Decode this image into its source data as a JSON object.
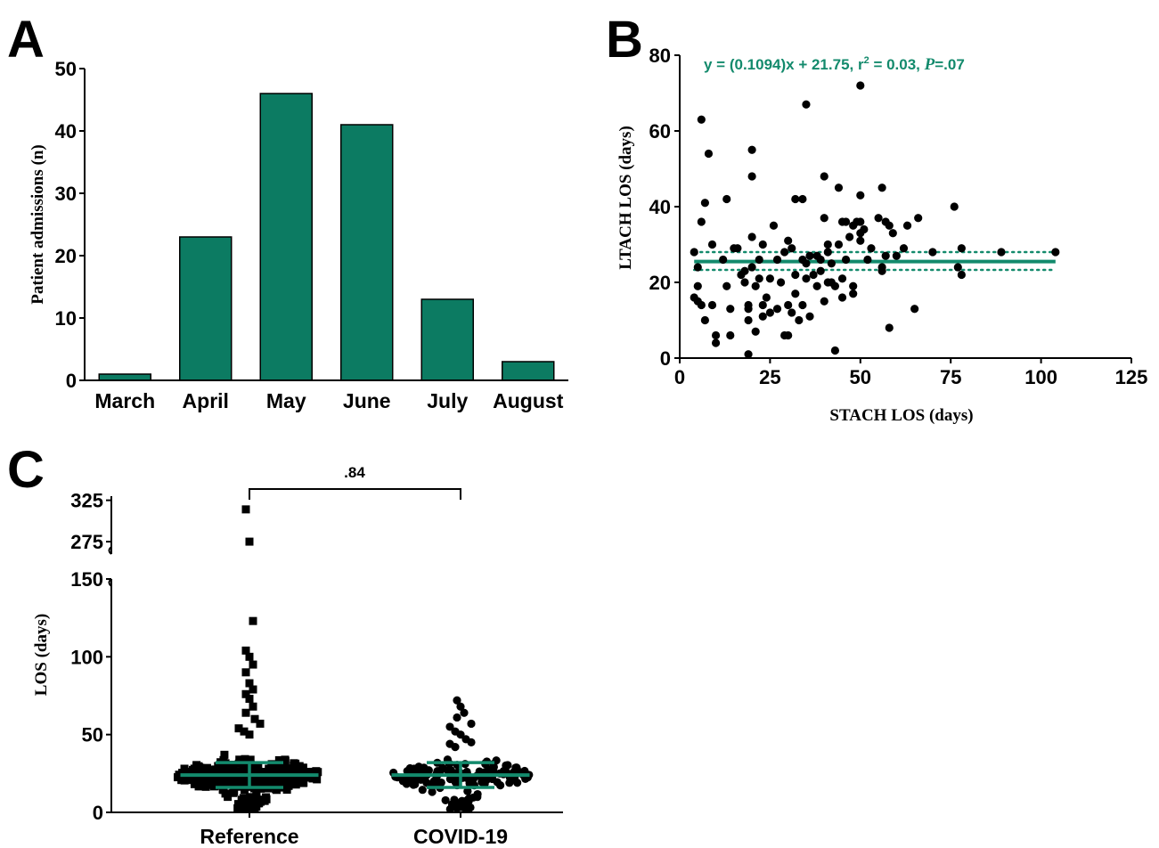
{
  "colors": {
    "bar": "#0c7b62",
    "accent": "#138a6c",
    "marker": "#000000"
  },
  "chart_data": [
    {
      "panel": "A",
      "type": "bar",
      "categories": [
        "March",
        "April",
        "May",
        "June",
        "July",
        "August"
      ],
      "values": [
        1,
        23,
        46,
        41,
        13,
        3
      ],
      "ylabel": "Patient admissions (n)",
      "xlabel": "",
      "ylim": [
        0,
        50
      ],
      "yticks": [
        0,
        10,
        20,
        30,
        40,
        50
      ],
      "grid": false
    },
    {
      "panel": "B",
      "type": "scatter",
      "xlabel": "STACH LOS (days)",
      "ylabel": "LTACH LOS (days)",
      "xlim": [
        0,
        125
      ],
      "ylim": [
        0,
        80
      ],
      "xticks": [
        0,
        25,
        50,
        75,
        100,
        125
      ],
      "yticks": [
        0,
        20,
        40,
        60,
        80
      ],
      "annotation": {
        "prefix": "y = (0.1094)x + 21.75, r",
        "sup": "2",
        "mid": " = 0.03, ",
        "p_letter": "P",
        "suffix": "=.07"
      },
      "fit_line": {
        "x": [
          4,
          104
        ],
        "y": [
          25.5,
          25.5
        ]
      },
      "ci_upper": {
        "x": [
          4,
          104
        ],
        "y": [
          28,
          28
        ]
      },
      "ci_lower": {
        "x": [
          4,
          104
        ],
        "y": [
          23.3,
          23.3
        ]
      },
      "points": [
        [
          6,
          63
        ],
        [
          8,
          54
        ],
        [
          20,
          55
        ],
        [
          35,
          67
        ],
        [
          50,
          72
        ],
        [
          7,
          41
        ],
        [
          6,
          36
        ],
        [
          13,
          42
        ],
        [
          20,
          48
        ],
        [
          4,
          28
        ],
        [
          5,
          24
        ],
        [
          5,
          19
        ],
        [
          4,
          16
        ],
        [
          5,
          15
        ],
        [
          6,
          14
        ],
        [
          7,
          10
        ],
        [
          9,
          14
        ],
        [
          9,
          30
        ],
        [
          10,
          6
        ],
        [
          10,
          4
        ],
        [
          12,
          26
        ],
        [
          13,
          19
        ],
        [
          14,
          13
        ],
        [
          14,
          6
        ],
        [
          15,
          29
        ],
        [
          16,
          29
        ],
        [
          17,
          22
        ],
        [
          18,
          20
        ],
        [
          18,
          23
        ],
        [
          19,
          10
        ],
        [
          19,
          1
        ],
        [
          19,
          14
        ],
        [
          19,
          13
        ],
        [
          20,
          32
        ],
        [
          20,
          24
        ],
        [
          21,
          7
        ],
        [
          21,
          19
        ],
        [
          22,
          21
        ],
        [
          22,
          26
        ],
        [
          23,
          11
        ],
        [
          23,
          14
        ],
        [
          23,
          30
        ],
        [
          24,
          16
        ],
        [
          25,
          12
        ],
        [
          25,
          21
        ],
        [
          26,
          35
        ],
        [
          27,
          26
        ],
        [
          27,
          13
        ],
        [
          28,
          20
        ],
        [
          29,
          28
        ],
        [
          29,
          6
        ],
        [
          30,
          6
        ],
        [
          30,
          14
        ],
        [
          30,
          31
        ],
        [
          31,
          12
        ],
        [
          31,
          29
        ],
        [
          32,
          42
        ],
        [
          32,
          22
        ],
        [
          32,
          17
        ],
        [
          33,
          10
        ],
        [
          34,
          42
        ],
        [
          34,
          14
        ],
        [
          34,
          26
        ],
        [
          35,
          21
        ],
        [
          35,
          25
        ],
        [
          36,
          27
        ],
        [
          36,
          11
        ],
        [
          37,
          22
        ],
        [
          38,
          19
        ],
        [
          38,
          27
        ],
        [
          39,
          23
        ],
        [
          39,
          26
        ],
        [
          40,
          48
        ],
        [
          40,
          37
        ],
        [
          40,
          15
        ],
        [
          41,
          28
        ],
        [
          41,
          30
        ],
        [
          41,
          20
        ],
        [
          42,
          25
        ],
        [
          42,
          20
        ],
        [
          43,
          19
        ],
        [
          43,
          2
        ],
        [
          44,
          45
        ],
        [
          44,
          30
        ],
        [
          45,
          21
        ],
        [
          45,
          16
        ],
        [
          45,
          36
        ],
        [
          46,
          36
        ],
        [
          46,
          26
        ],
        [
          47,
          32
        ],
        [
          48,
          19
        ],
        [
          48,
          35
        ],
        [
          48,
          17
        ],
        [
          49,
          36
        ],
        [
          50,
          36
        ],
        [
          50,
          33
        ],
        [
          50,
          31
        ],
        [
          50,
          43
        ],
        [
          51,
          34
        ],
        [
          52,
          26
        ],
        [
          53,
          29
        ],
        [
          55,
          37
        ],
        [
          56,
          45
        ],
        [
          56,
          24
        ],
        [
          56,
          23
        ],
        [
          57,
          27
        ],
        [
          57,
          36
        ],
        [
          58,
          35
        ],
        [
          58,
          8
        ],
        [
          59,
          33
        ],
        [
          60,
          27
        ],
        [
          62,
          29
        ],
        [
          63,
          35
        ],
        [
          65,
          13
        ],
        [
          66,
          37
        ],
        [
          70,
          28
        ],
        [
          76,
          40
        ],
        [
          77,
          24
        ],
        [
          78,
          22
        ],
        [
          78,
          29
        ],
        [
          89,
          28
        ],
        [
          104,
          28
        ]
      ]
    },
    {
      "panel": "C",
      "type": "scatter",
      "categories": [
        "Reference",
        "COVID-19"
      ],
      "ylabel": "LOS (days)",
      "yaxis_break": {
        "lower": [
          0,
          150
        ],
        "upper": [
          260,
          330
        ]
      },
      "yticks_lower": [
        0,
        50,
        100,
        150
      ],
      "yticks_upper": [
        275,
        325
      ],
      "significance": ".84",
      "groups": [
        {
          "name": "Reference",
          "marker": "square",
          "median": 24,
          "q1": 16,
          "q3": 32,
          "whisker": 25,
          "outliers": [
            314,
            275,
            123,
            104,
            100,
            95,
            90,
            83,
            79,
            76,
            73,
            68,
            64,
            60,
            57,
            54,
            52,
            50
          ]
        },
        {
          "name": "COVID-19",
          "marker": "circle",
          "median": 24,
          "q1": 16,
          "q3": 32,
          "whisker": 25,
          "outliers": [
            72,
            68,
            64,
            61,
            57,
            55,
            52,
            50,
            47,
            45,
            44,
            42
          ]
        }
      ]
    }
  ],
  "panels": {
    "a": "A",
    "b": "B",
    "c": "C"
  }
}
